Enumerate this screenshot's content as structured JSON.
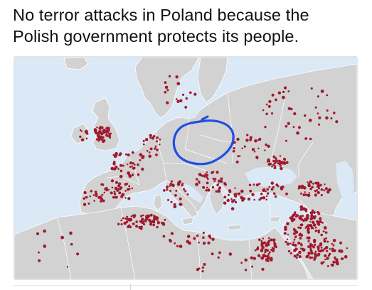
{
  "caption": {
    "line1": "No terror attacks in Poland because the",
    "line2": "Polish government protects its people."
  },
  "map": {
    "region": "Europe, North Africa and Middle East",
    "colors": {
      "sea": "#dbe8f6",
      "land": "#d2d2d2",
      "border": "#ffffff",
      "attack_marker": "#a0192d",
      "highlight_circle": "#1f4fe0"
    },
    "highlighted_region": "Poland",
    "markers": [
      {
        "name": "uk-cluster",
        "density": "heavy"
      },
      {
        "name": "france-cluster",
        "density": "medium"
      },
      {
        "name": "spain-cluster",
        "density": "medium"
      },
      {
        "name": "italy-cluster",
        "density": "light"
      },
      {
        "name": "balkans-cluster",
        "density": "medium"
      },
      {
        "name": "ukraine-cluster",
        "density": "heavy"
      },
      {
        "name": "caucasus-cluster",
        "density": "heavy"
      },
      {
        "name": "algeria-cluster",
        "density": "heavy"
      },
      {
        "name": "libya-cluster",
        "density": "light"
      },
      {
        "name": "egypt-cluster",
        "density": "heavy"
      },
      {
        "name": "levant-iraq-cluster",
        "density": "very-heavy"
      },
      {
        "name": "turkey-cluster",
        "density": "medium"
      },
      {
        "name": "northern-europe-scatter",
        "density": "light"
      },
      {
        "name": "poland",
        "density": "none"
      }
    ]
  }
}
